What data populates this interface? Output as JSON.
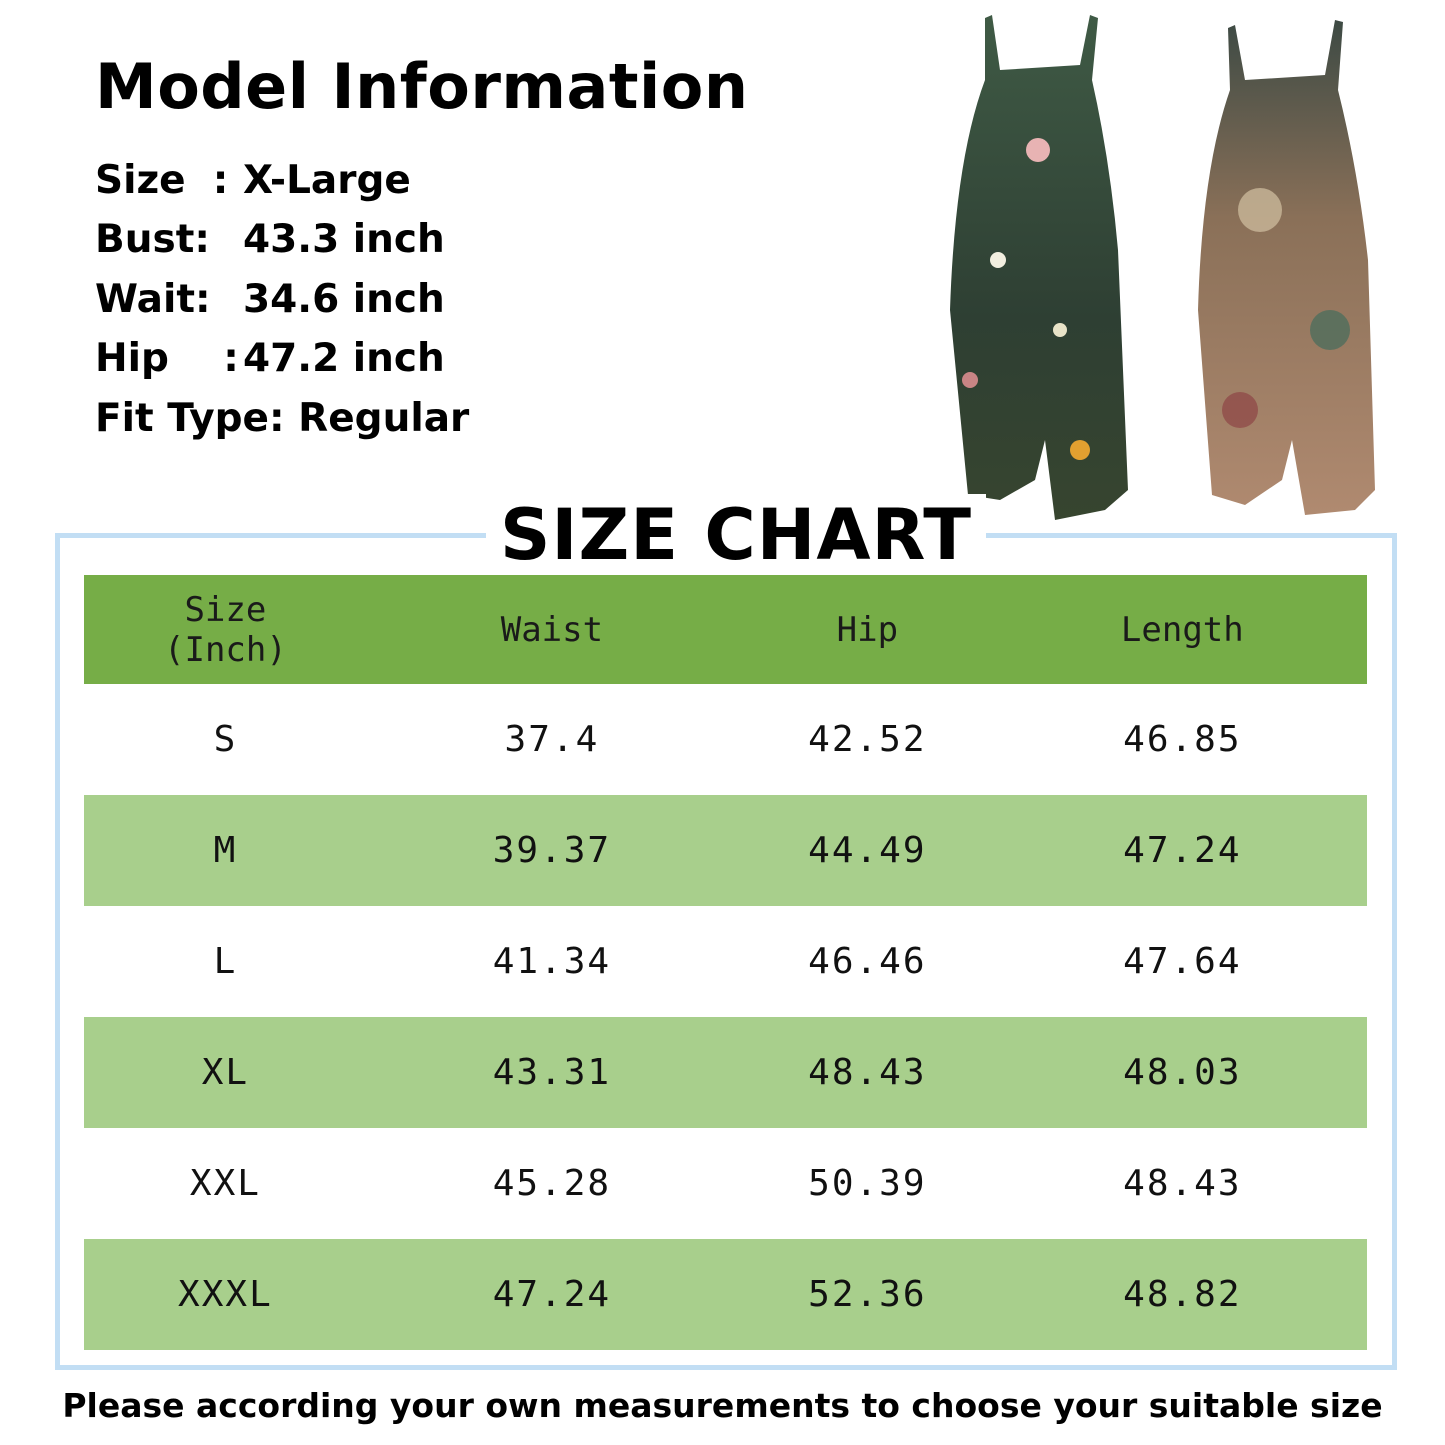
{
  "model_info": {
    "title": "Model Information",
    "rows": [
      {
        "label": "Size  :",
        "value": "X-Large"
      },
      {
        "label": "Bust:",
        "value": "43.3 inch"
      },
      {
        "label": "Wait:",
        "value": "34.6 inch"
      },
      {
        "label": "Hip    :",
        "value": "47.2 inch"
      },
      {
        "label": "Fit Type:",
        "value": "Regular"
      }
    ]
  },
  "size_chart": {
    "title": "SIZE CHART",
    "headers": [
      "Size (Inch)",
      "Waist",
      "Hip",
      "Length"
    ],
    "rows": [
      [
        "S",
        "37.4",
        "42.52",
        "46.85"
      ],
      [
        "M",
        "39.37",
        "44.49",
        "47.24"
      ],
      [
        "L",
        "41.34",
        "46.46",
        "47.64"
      ],
      [
        "XL",
        "43.31",
        "48.43",
        "48.03"
      ],
      [
        "XXL",
        "45.28",
        "50.39",
        "48.43"
      ],
      [
        "XXXL",
        "47.24",
        "52.36",
        "48.82"
      ]
    ]
  },
  "footer": "Please according your own measurements to choose your suitable size",
  "colors": {
    "header_green": "#76ad47",
    "row_green": "#a8cf8c",
    "frame_blue": "#c2def4"
  }
}
